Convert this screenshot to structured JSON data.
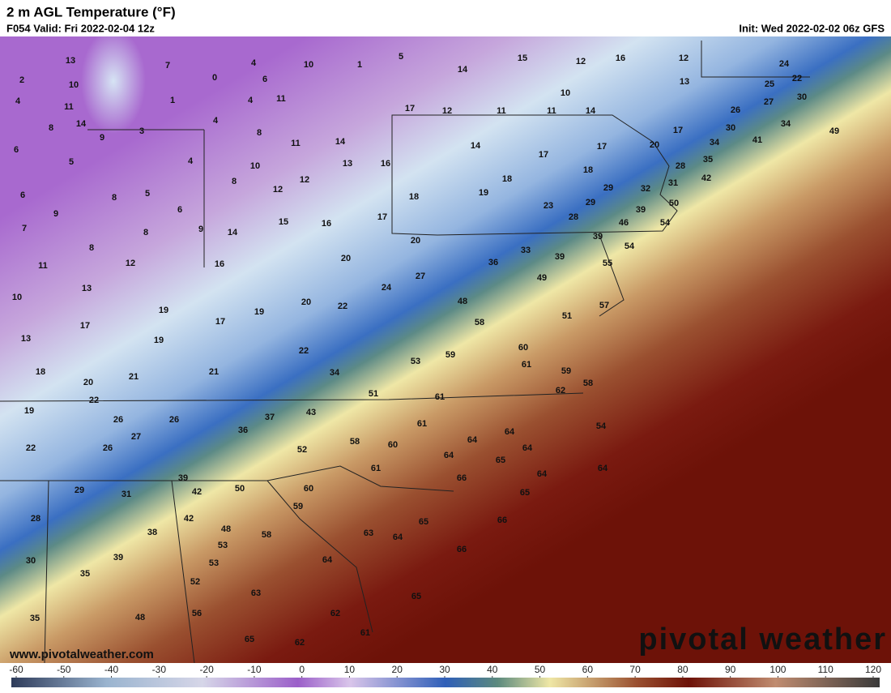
{
  "header": {
    "title": "2 m AGL Temperature (°F)",
    "valid": "F054 Valid: Fri 2022-02-04 12z",
    "init": "Init: Wed 2022-02-02 06z GFS"
  },
  "map": {
    "labels": [
      13,
      7,
      4,
      10,
      1,
      5,
      15,
      12,
      16,
      12,
      24,
      2,
      10,
      0,
      6,
      14,
      13,
      25,
      22,
      4,
      1,
      4,
      11,
      10,
      27,
      30,
      11,
      17,
      12,
      11,
      11,
      14,
      26,
      8,
      14,
      3,
      4,
      8,
      30,
      34,
      9,
      17,
      49,
      6,
      11,
      14,
      34,
      41,
      5,
      4,
      10,
      13,
      16,
      14,
      17,
      17,
      20,
      18,
      28,
      35,
      8,
      12,
      18,
      42,
      6,
      8,
      5,
      12,
      18,
      19,
      29,
      32,
      31,
      9,
      6,
      29,
      50,
      7,
      8,
      9,
      14,
      15,
      16,
      17,
      23,
      28,
      39,
      46,
      54,
      20,
      39,
      54,
      8,
      12,
      16,
      20,
      33,
      39,
      36,
      55,
      11,
      27,
      49,
      13,
      24,
      10,
      20,
      22,
      48,
      57,
      19,
      19,
      51,
      17,
      17,
      58,
      13,
      19,
      22,
      60,
      59,
      53,
      61,
      18,
      21,
      21,
      34,
      59,
      58,
      20,
      62,
      51,
      61,
      22,
      19,
      43,
      37,
      26,
      26,
      61,
      54,
      36,
      64,
      27,
      58,
      60,
      64,
      64,
      22,
      26,
      52,
      64,
      65,
      61,
      66,
      64,
      64,
      39,
      29,
      31,
      42,
      50,
      60,
      65,
      59,
      28,
      42,
      66,
      65,
      38,
      48,
      58,
      63,
      64,
      53,
      66,
      39,
      53,
      64,
      30,
      35,
      52,
      63,
      65,
      56,
      62,
      35,
      48,
      61,
      65,
      62
    ]
  },
  "watermark": "www.pivotalweather.com",
  "logo": "pivotal weather",
  "colorbar": {
    "ticks": [
      -60,
      -50,
      -40,
      -30,
      -20,
      -10,
      0,
      10,
      20,
      30,
      40,
      50,
      60,
      70,
      80,
      90,
      100,
      110,
      120
    ]
  }
}
